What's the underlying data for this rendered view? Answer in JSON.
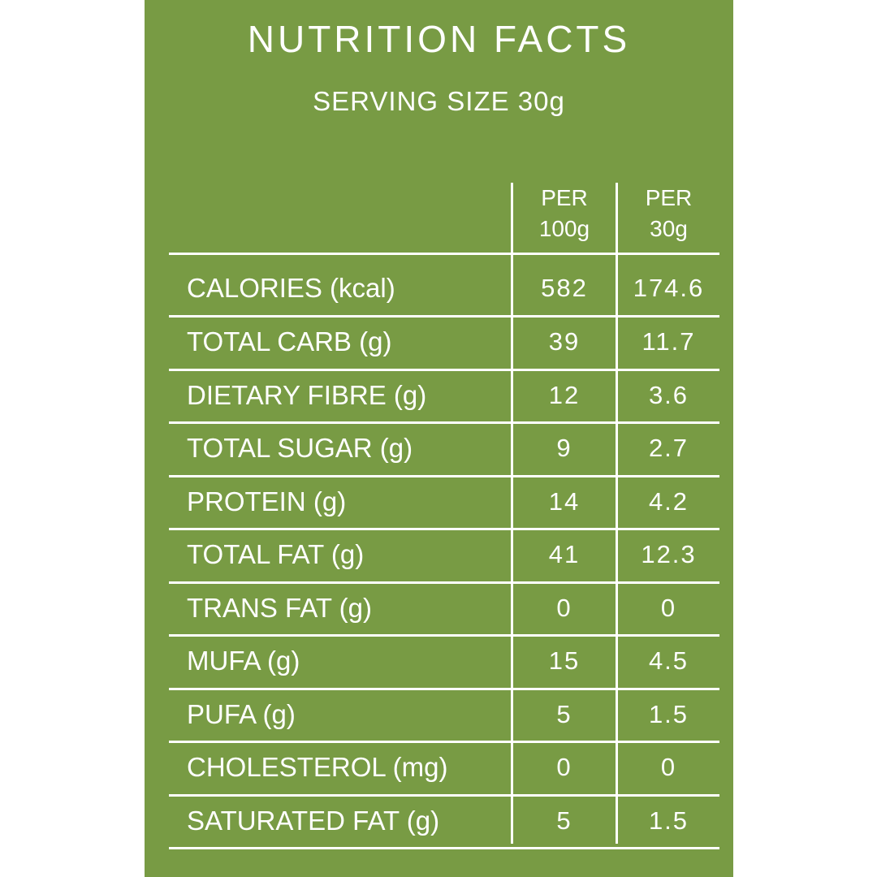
{
  "title": "NUTRITION FACTS",
  "serving_size": "SERVING SIZE 30g",
  "columns": [
    {
      "line1": "PER",
      "line2": "100g"
    },
    {
      "line1": "PER",
      "line2": "30g"
    }
  ],
  "rows": [
    {
      "label": "CALORIES (kcal)",
      "per100": "582",
      "per30": "174.6"
    },
    {
      "label": "TOTAL CARB (g)",
      "per100": "39",
      "per30": "11.7"
    },
    {
      "label": "DIETARY FIBRE (g)",
      "per100": "12",
      "per30": "3.6"
    },
    {
      "label": "TOTAL SUGAR (g)",
      "per100": "9",
      "per30": "2.7"
    },
    {
      "label": "PROTEIN (g)",
      "per100": "14",
      "per30": "4.2"
    },
    {
      "label": "TOTAL FAT (g)",
      "per100": "41",
      "per30": "12.3"
    },
    {
      "label": "TRANS FAT (g)",
      "per100": "0",
      "per30": "0"
    },
    {
      "label": "MUFA (g)",
      "per100": "15",
      "per30": "4.5"
    },
    {
      "label": "PUFA (g)",
      "per100": "5",
      "per30": "1.5"
    },
    {
      "label": "CHOLESTEROL (mg)",
      "per100": "0",
      "per30": "0"
    },
    {
      "label": "SATURATED FAT (g)",
      "per100": "5",
      "per30": "1.5"
    }
  ],
  "colors": {
    "panel_background": "#789b44",
    "text": "#ffffff",
    "page_background": "#ffffff"
  }
}
